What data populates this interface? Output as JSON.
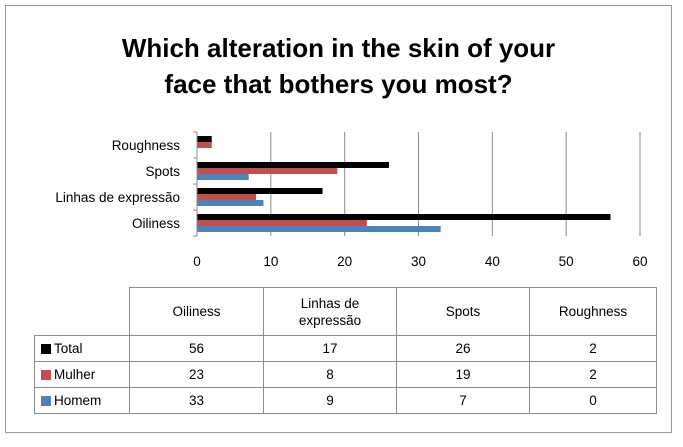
{
  "chart_data": {
    "type": "bar",
    "orientation": "horizontal",
    "title": "Which alteration in the skin of your face that bothers you most?",
    "title_lines": [
      "Which alteration in the skin of your",
      "face that bothers you most?"
    ],
    "categories": [
      "Oiliness",
      "Linhas de expressão",
      "Spots",
      "Roughness"
    ],
    "table_headers": [
      "Oiliness",
      "Linhas de expressão",
      "Spots",
      "Roughness"
    ],
    "series": [
      {
        "name": "Total",
        "color": "#000000",
        "values": [
          56,
          17,
          26,
          2
        ]
      },
      {
        "name": "Mulher",
        "color": "#c0504d",
        "values": [
          23,
          8,
          19,
          2
        ]
      },
      {
        "name": "Homem",
        "color": "#4f81bd",
        "values": [
          33,
          9,
          7,
          0
        ]
      }
    ],
    "xlim": [
      0,
      60
    ],
    "xticks": [
      0,
      10,
      20,
      30,
      40,
      50,
      60
    ],
    "grid": true,
    "legend": "data-table-below"
  }
}
